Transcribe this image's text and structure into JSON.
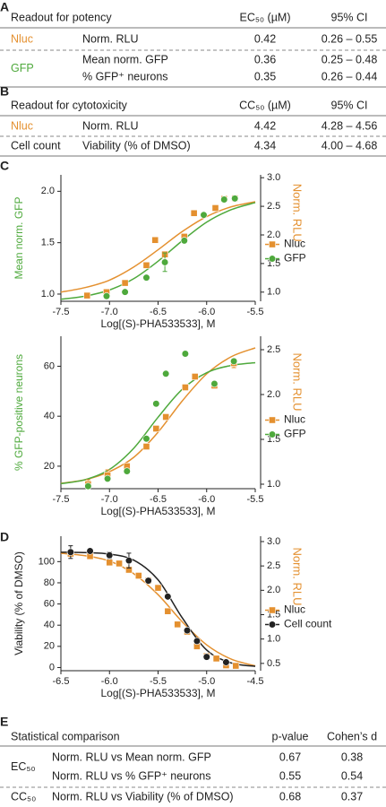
{
  "table_a": {
    "label": "A",
    "header": [
      "Readout for potency",
      "EC₅₀ (µM)",
      "95% CI"
    ],
    "groups": [
      {
        "name": "Nluc",
        "color": "#e4902f",
        "rows": [
          [
            "Norm. RLU",
            0.42,
            "0.26 – 0.55"
          ]
        ]
      },
      {
        "name": "GFP",
        "color": "#4ea93c",
        "rows": [
          [
            "Mean norm. GFP",
            0.36,
            "0.25 – 0.48"
          ],
          [
            "% GFP⁺ neurons",
            0.35,
            "0.26 – 0.44"
          ]
        ]
      }
    ]
  },
  "table_b": {
    "label": "B",
    "header": [
      "Readout for cytotoxicity",
      "CC₅₀ (µM)",
      "95% CI"
    ],
    "groups": [
      {
        "name": "Nluc",
        "color": "#e4902f",
        "rows": [
          [
            "Norm. RLU",
            4.42,
            "4.28 – 4.56"
          ]
        ]
      },
      {
        "name": "Cell count",
        "color": "#222222",
        "rows": [
          [
            "Viability (% of DMSO)",
            4.34,
            "4.00 – 4.68"
          ]
        ]
      }
    ]
  },
  "chart_data": [
    {
      "type": "line",
      "label": "C",
      "xlabel": "Log[(S)-PHA533533], M",
      "ylabel": "Mean norm. GFP",
      "ylabel_color": "#4ea93c",
      "y2label": "Norm. RLU",
      "y2label_color": "#e4902f",
      "legend": "right",
      "xlim": [
        -7.5,
        -5.5
      ],
      "xticks": [
        -7.5,
        {
          "value": -7,
          "label": "-7.0"
        },
        -6.5,
        {
          "value": -6,
          "label": "-6.0"
        },
        -5.5
      ],
      "ylim": [
        0.93,
        2.16
      ],
      "yticks": [
        {
          "value": 1,
          "label": "1.0"
        },
        1.5,
        {
          "value": 2,
          "label": "2.0"
        }
      ],
      "y2lim": [
        0.84,
        3.05
      ],
      "y2ticks": [
        {
          "value": 1,
          "label": "1.0"
        },
        1.5,
        {
          "value": 2,
          "label": "2.0"
        },
        2.5,
        {
          "value": 3,
          "label": "3.0"
        }
      ],
      "series": [
        {
          "name": "Nluc",
          "color": "#e4902f",
          "marker": "square",
          "axis": "y2",
          "x": [
            -7.23,
            -7.03,
            -6.84,
            -6.62,
            -6.53,
            -6.43,
            -6.23,
            -6.13,
            -5.91,
            -5.82,
            -5.71
          ],
          "values": [
            0.94,
            1.0,
            1.16,
            1.47,
            1.91,
            1.66,
            1.97,
            2.38,
            2.47,
            2.63,
            2.64
          ],
          "errors": [
            null,
            null,
            null,
            null,
            null,
            null,
            null,
            null,
            null,
            null,
            null
          ]
        },
        {
          "name": "GFP",
          "color": "#4ea93c",
          "marker": "circle",
          "axis": "y",
          "x": [
            -7.03,
            -6.84,
            -6.62,
            -6.43,
            -6.23,
            -6.03,
            -5.82,
            -5.71
          ],
          "values": [
            0.98,
            1.02,
            1.16,
            1.31,
            1.52,
            1.77,
            1.92,
            1.93
          ],
          "errors": [
            null,
            null,
            null,
            0.09,
            null,
            null,
            null,
            0.02
          ]
        }
      ],
      "fit_x": [
        -7.5,
        -7.25,
        -7.0,
        -6.75,
        -6.5,
        -6.25,
        -6.0,
        -5.75,
        -5.5
      ],
      "fits": [
        {
          "color": "#e4902f",
          "axis": "y2",
          "values": [
            1.0,
            1.08,
            1.21,
            1.44,
            1.74,
            2.06,
            2.32,
            2.49,
            2.58
          ]
        },
        {
          "color": "#4ea93c",
          "axis": "y",
          "values": [
            0.95,
            0.98,
            1.04,
            1.15,
            1.32,
            1.52,
            1.7,
            1.82,
            1.89
          ]
        }
      ]
    },
    {
      "type": "line",
      "xlabel": "Log[(S)-PHA533533], M",
      "ylabel": "% GFP-positive neurons",
      "ylabel_color": "#4ea93c",
      "y2label": "Norm. RLU",
      "y2label_color": "#e4902f",
      "legend": "right",
      "xlim": [
        -7.5,
        -5.5
      ],
      "xticks": [
        -7.5,
        {
          "value": -7,
          "label": "-7.0"
        },
        -6.5,
        {
          "value": -6,
          "label": "-6.0"
        },
        -5.5
      ],
      "ylim": [
        11,
        72
      ],
      "yticks": [
        20,
        40,
        60
      ],
      "y2lim": [
        0.95,
        2.65
      ],
      "y2ticks": [
        {
          "value": 1,
          "label": "1.0"
        },
        1.5,
        {
          "value": 2,
          "label": "2.0"
        },
        2.5
      ],
      "series": [
        {
          "name": "Nluc",
          "color": "#e4902f",
          "marker": "square",
          "axis": "y2",
          "x": [
            -7.22,
            -7.02,
            -6.82,
            -6.62,
            -6.52,
            -6.42,
            -6.22,
            -6.12,
            -5.92,
            -5.72
          ],
          "values": [
            1.0,
            1.1,
            1.2,
            1.42,
            1.62,
            1.75,
            2.08,
            2.2,
            2.1,
            2.35
          ],
          "errors": [
            0.05,
            0.06,
            null,
            null,
            null,
            null,
            null,
            null,
            null,
            0.05
          ]
        },
        {
          "name": "GFP",
          "color": "#4ea93c",
          "marker": "circle",
          "axis": "y",
          "x": [
            -7.22,
            -7.02,
            -6.82,
            -6.62,
            -6.52,
            -6.42,
            -6.22,
            -5.92,
            -5.72
          ],
          "values": [
            12,
            15,
            18,
            31,
            45,
            57,
            65,
            53,
            62
          ],
          "errors": [
            null,
            null,
            null,
            null,
            null,
            null,
            null,
            null,
            null
          ]
        }
      ],
      "fit_x": [
        -7.5,
        -7.25,
        -7.0,
        -6.75,
        -6.5,
        -6.25,
        -6.0,
        -5.75,
        -5.5
      ],
      "fits": [
        {
          "color": "#e4902f",
          "axis": "y2",
          "values": [
            1.01,
            1.05,
            1.14,
            1.3,
            1.58,
            1.93,
            2.23,
            2.42,
            2.52
          ]
        },
        {
          "color": "#4ea93c",
          "axis": "y",
          "values": [
            13.0,
            14.6,
            18.7,
            27.2,
            39.6,
            50.8,
            57.4,
            60.3,
            61.4
          ]
        }
      ]
    },
    {
      "type": "line",
      "label": "D",
      "xlabel": "Log[(S)-PHA533533], M",
      "ylabel": "Viability (% of DMSO)",
      "ylabel_color": "#222222",
      "y2label": "Norm. RLU",
      "y2label_color": "#e4902f",
      "legend": "right",
      "xlim": [
        -6.5,
        -4.5
      ],
      "xticks": [
        -6.5,
        {
          "value": -6,
          "label": "-6.0"
        },
        -5.5,
        {
          "value": -5,
          "label": "-5.0"
        },
        -4.5
      ],
      "ylim": [
        -3,
        124
      ],
      "yticks": [
        0,
        20,
        40,
        60,
        80,
        100
      ],
      "y2lim": [
        0.35,
        3.11
      ],
      "y2ticks": [
        0.5,
        {
          "value": 1,
          "label": "1.0"
        },
        1.5,
        {
          "value": 2,
          "label": "2.0"
        },
        2.5,
        {
          "value": 3,
          "label": "3.0"
        }
      ],
      "series": [
        {
          "name": "Nluc",
          "color": "#e4902f",
          "marker": "square",
          "axis": "y2",
          "x": [
            -6.4,
            -6.2,
            -6.0,
            -5.9,
            -5.8,
            -5.7,
            -5.6,
            -5.5,
            -5.4,
            -5.3,
            -5.2,
            -5.1,
            -5.0,
            -4.9,
            -4.8,
            -4.7
          ],
          "values": [
            2.75,
            2.7,
            2.57,
            2.55,
            2.42,
            2.3,
            2.2,
            2.05,
            1.57,
            1.3,
            1.15,
            0.85,
            0.65,
            0.6,
            0.46,
            0.45
          ],
          "errors": [
            null,
            null,
            null,
            null,
            null,
            null,
            null,
            null,
            null,
            null,
            null,
            null,
            null,
            null,
            null,
            null
          ]
        },
        {
          "name": "Cell count",
          "color": "#222222",
          "marker": "circle",
          "axis": "y",
          "x": [
            -6.4,
            -6.2,
            -6.0,
            -5.8,
            -5.6,
            -5.4,
            -5.2,
            -5.1,
            -5.0,
            -4.8
          ],
          "values": [
            109,
            110,
            106,
            101,
            82,
            67,
            35,
            25,
            10,
            5
          ],
          "errors": [
            6,
            null,
            3,
            7,
            null,
            null,
            null,
            null,
            null,
            null
          ]
        }
      ],
      "fit_x": [
        -6.5,
        -6.25,
        -6.0,
        -5.75,
        -5.5,
        -5.25,
        -5.0,
        -4.75,
        -4.5
      ],
      "fits": [
        {
          "color": "#e4902f",
          "axis": "y2",
          "values": [
            2.76,
            2.71,
            2.6,
            2.34,
            1.91,
            1.35,
            0.88,
            0.59,
            0.45
          ]
        },
        {
          "color": "#222222",
          "axis": "y",
          "values": [
            108.9,
            108.5,
            107.1,
            101.4,
            82.8,
            46.8,
            16.5,
            4.4,
            1.1
          ]
        }
      ]
    }
  ],
  "table_e": {
    "label": "E",
    "header": [
      "Statistical comparison",
      "p-value",
      "Cohen’s d"
    ],
    "groups": [
      {
        "name": "EC₅₀",
        "color": "#222222",
        "rows": [
          [
            "Norm. RLU vs Mean norm. GFP",
            0.67,
            0.38
          ],
          [
            "Norm. RLU vs % GFP⁺ neurons",
            0.55,
            0.54
          ]
        ]
      },
      {
        "name": "CC₅₀",
        "color": "#222222",
        "rows": [
          [
            "Norm. RLU vs Viability (% of DMSO)",
            0.68,
            0.37
          ]
        ]
      }
    ]
  }
}
